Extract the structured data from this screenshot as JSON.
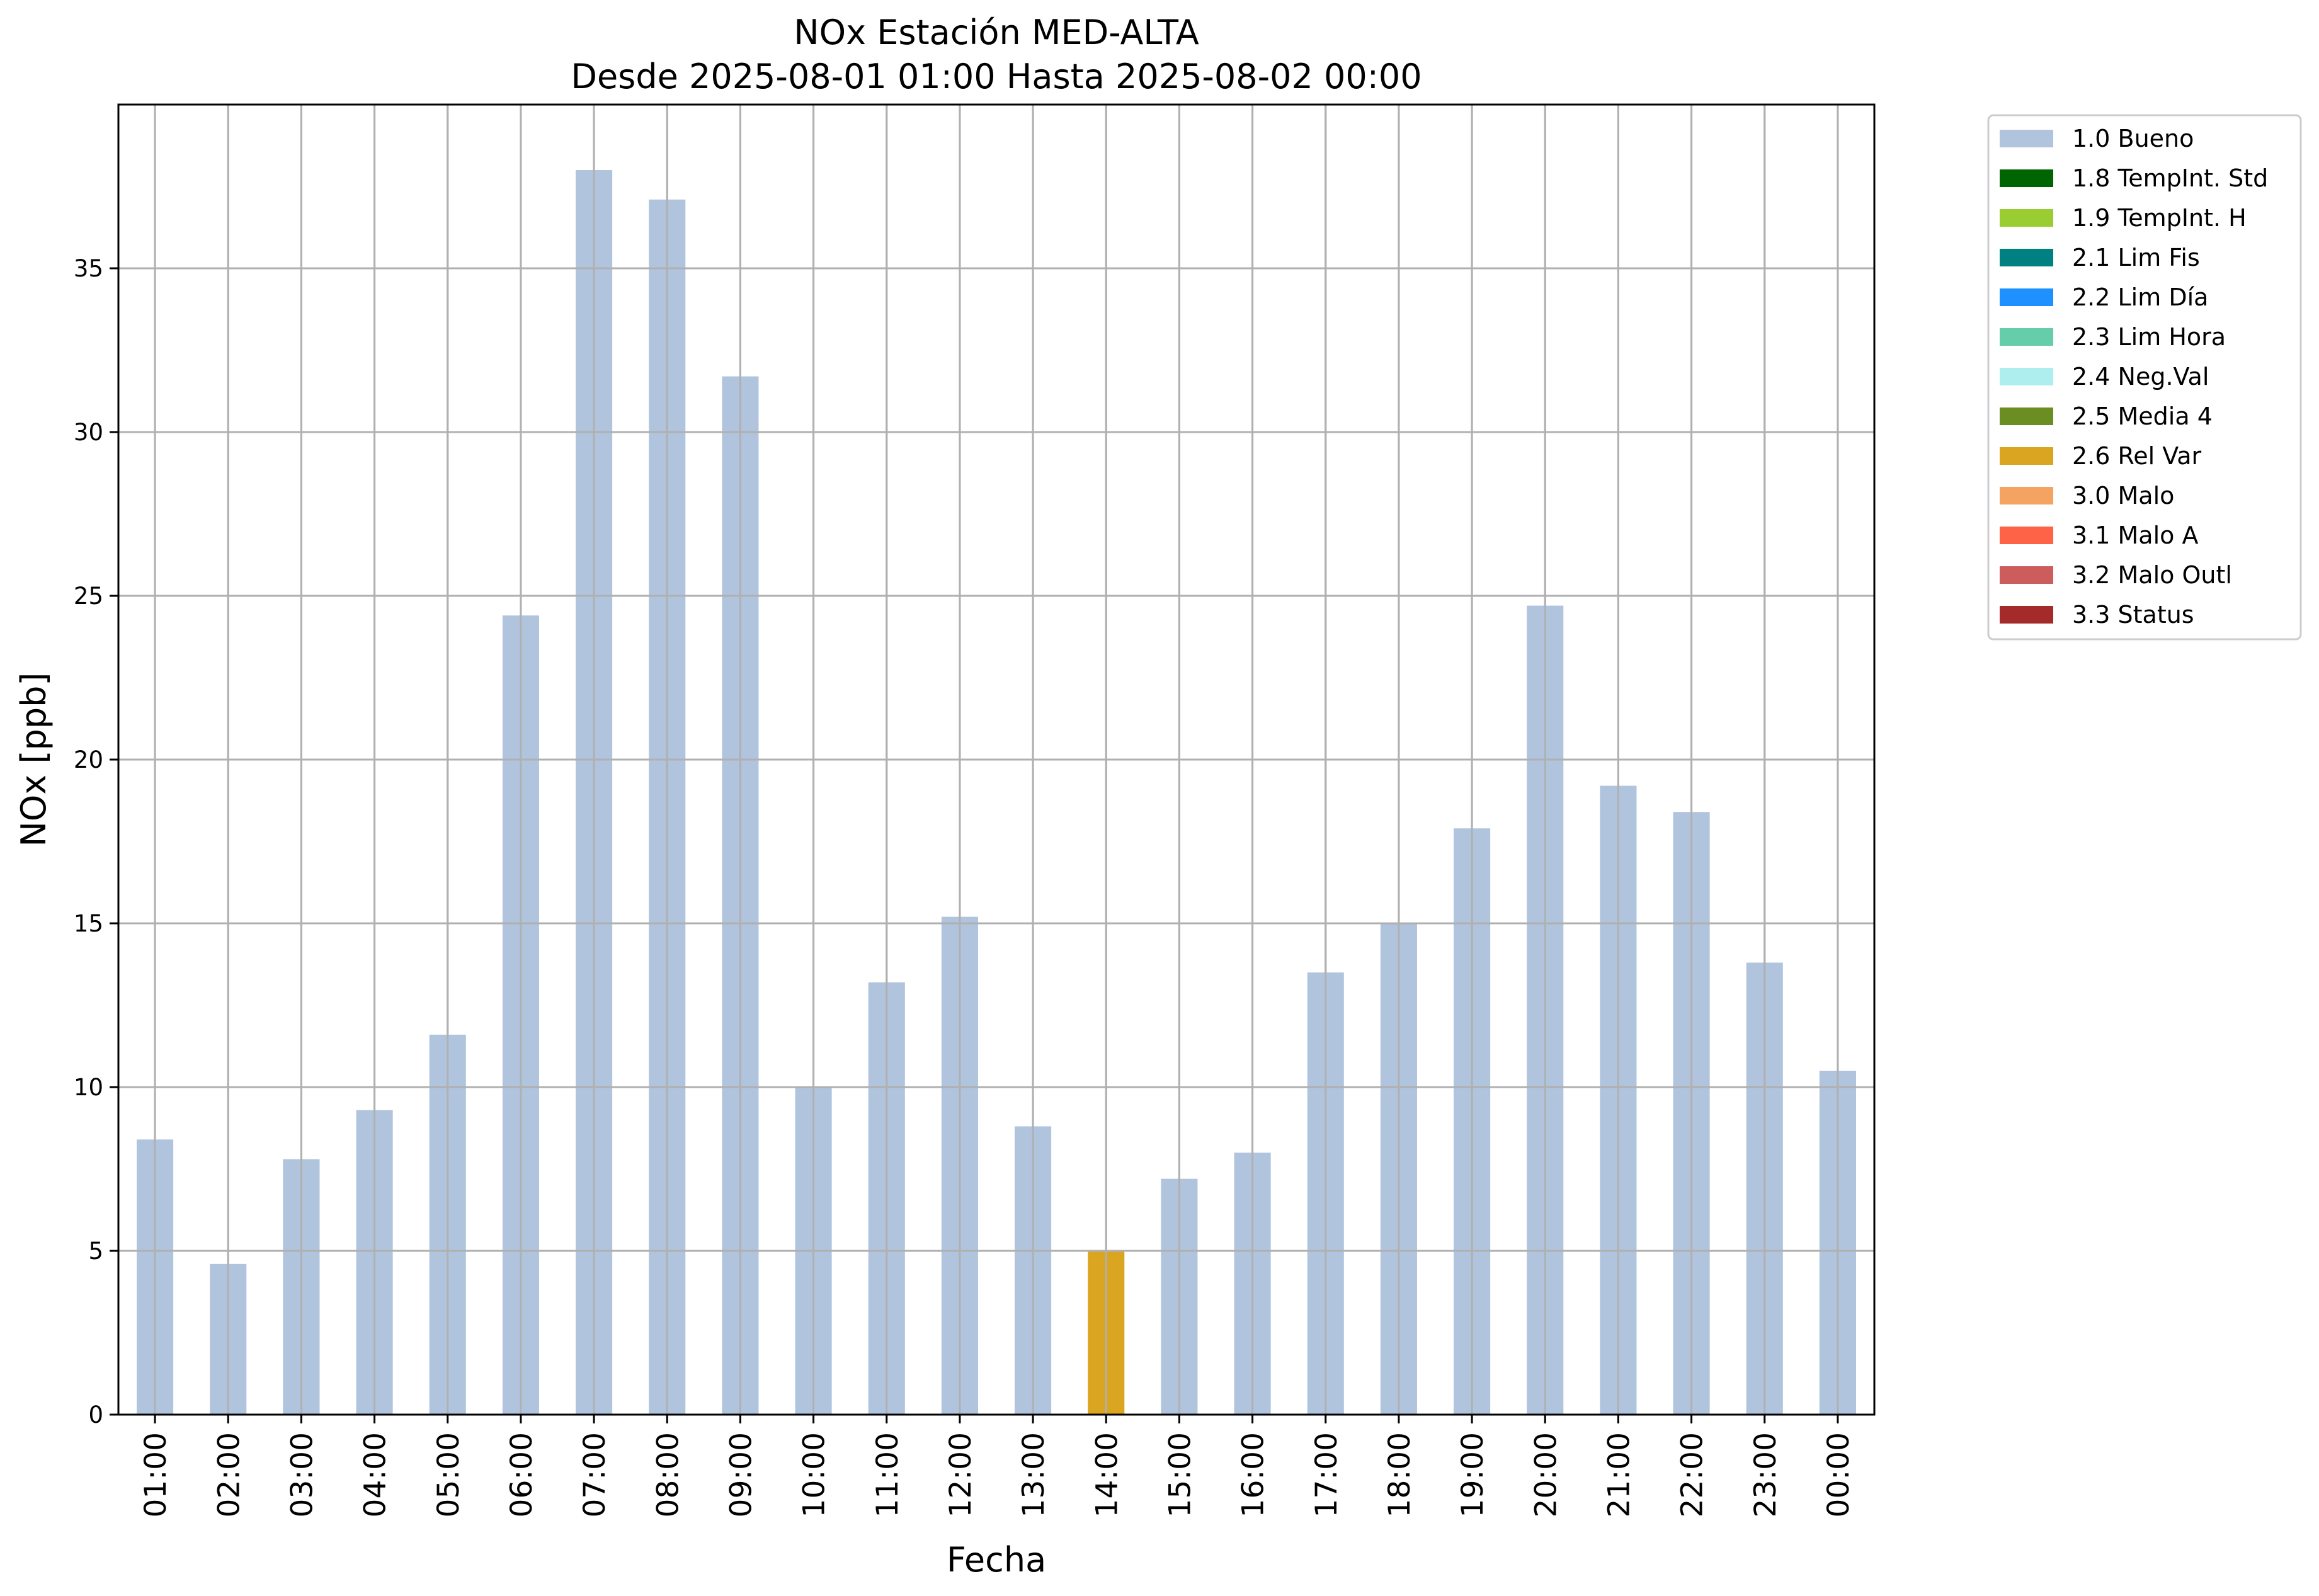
{
  "chart_data": {
    "type": "bar",
    "title": "NOx Estación MED-ALTA",
    "subtitle": "Desde 2025-08-01 01:00 Hasta 2025-08-02 00:00",
    "xlabel": "Fecha",
    "ylabel": "NOx [ppb]",
    "ylim": [
      0,
      40
    ],
    "yticks": [
      0,
      5,
      10,
      15,
      20,
      25,
      30,
      35
    ],
    "grid": true,
    "legend_position": "outside-top-right",
    "categories": [
      "01:00",
      "02:00",
      "03:00",
      "04:00",
      "05:00",
      "06:00",
      "07:00",
      "08:00",
      "09:00",
      "10:00",
      "11:00",
      "12:00",
      "13:00",
      "14:00",
      "15:00",
      "16:00",
      "17:00",
      "18:00",
      "19:00",
      "20:00",
      "21:00",
      "22:00",
      "23:00",
      "00:00"
    ],
    "values": [
      8.4,
      4.6,
      7.8,
      9.3,
      11.6,
      24.4,
      38.0,
      37.1,
      31.7,
      10.0,
      13.2,
      15.2,
      8.8,
      5.0,
      7.2,
      8.0,
      13.5,
      15.0,
      17.9,
      24.7,
      19.2,
      18.4,
      13.8,
      10.5
    ],
    "flags": [
      "1.0 Bueno",
      "1.0 Bueno",
      "1.0 Bueno",
      "1.0 Bueno",
      "1.0 Bueno",
      "1.0 Bueno",
      "1.0 Bueno",
      "1.0 Bueno",
      "1.0 Bueno",
      "1.0 Bueno",
      "1.0 Bueno",
      "1.0 Bueno",
      "1.0 Bueno",
      "2.6 Rel Var",
      "1.0 Bueno",
      "1.0 Bueno",
      "1.0 Bueno",
      "1.0 Bueno",
      "1.0 Bueno",
      "1.0 Bueno",
      "1.0 Bueno",
      "1.0 Bueno",
      "1.0 Bueno",
      "1.0 Bueno"
    ],
    "legend": [
      {
        "label": "1.0 Bueno",
        "color": "#b0c4de"
      },
      {
        "label": "1.8 TempInt. Std",
        "color": "#006400"
      },
      {
        "label": "1.9 TempInt. H",
        "color": "#9acd32"
      },
      {
        "label": "2.1 Lim Fis",
        "color": "#008080"
      },
      {
        "label": "2.2 Lim Día",
        "color": "#1e90ff"
      },
      {
        "label": "2.3 Lim Hora",
        "color": "#66cdaa"
      },
      {
        "label": "2.4 Neg.Val",
        "color": "#afeeee"
      },
      {
        "label": "2.5 Media 4",
        "color": "#6b8e23"
      },
      {
        "label": "2.6 Rel Var",
        "color": "#daa520"
      },
      {
        "label": "3.0 Malo",
        "color": "#f4a460"
      },
      {
        "label": "3.1 Malo A",
        "color": "#ff6347"
      },
      {
        "label": "3.2 Malo Outl",
        "color": "#cd5c5c"
      },
      {
        "label": "3.3 Status",
        "color": "#a52a2a"
      }
    ]
  }
}
